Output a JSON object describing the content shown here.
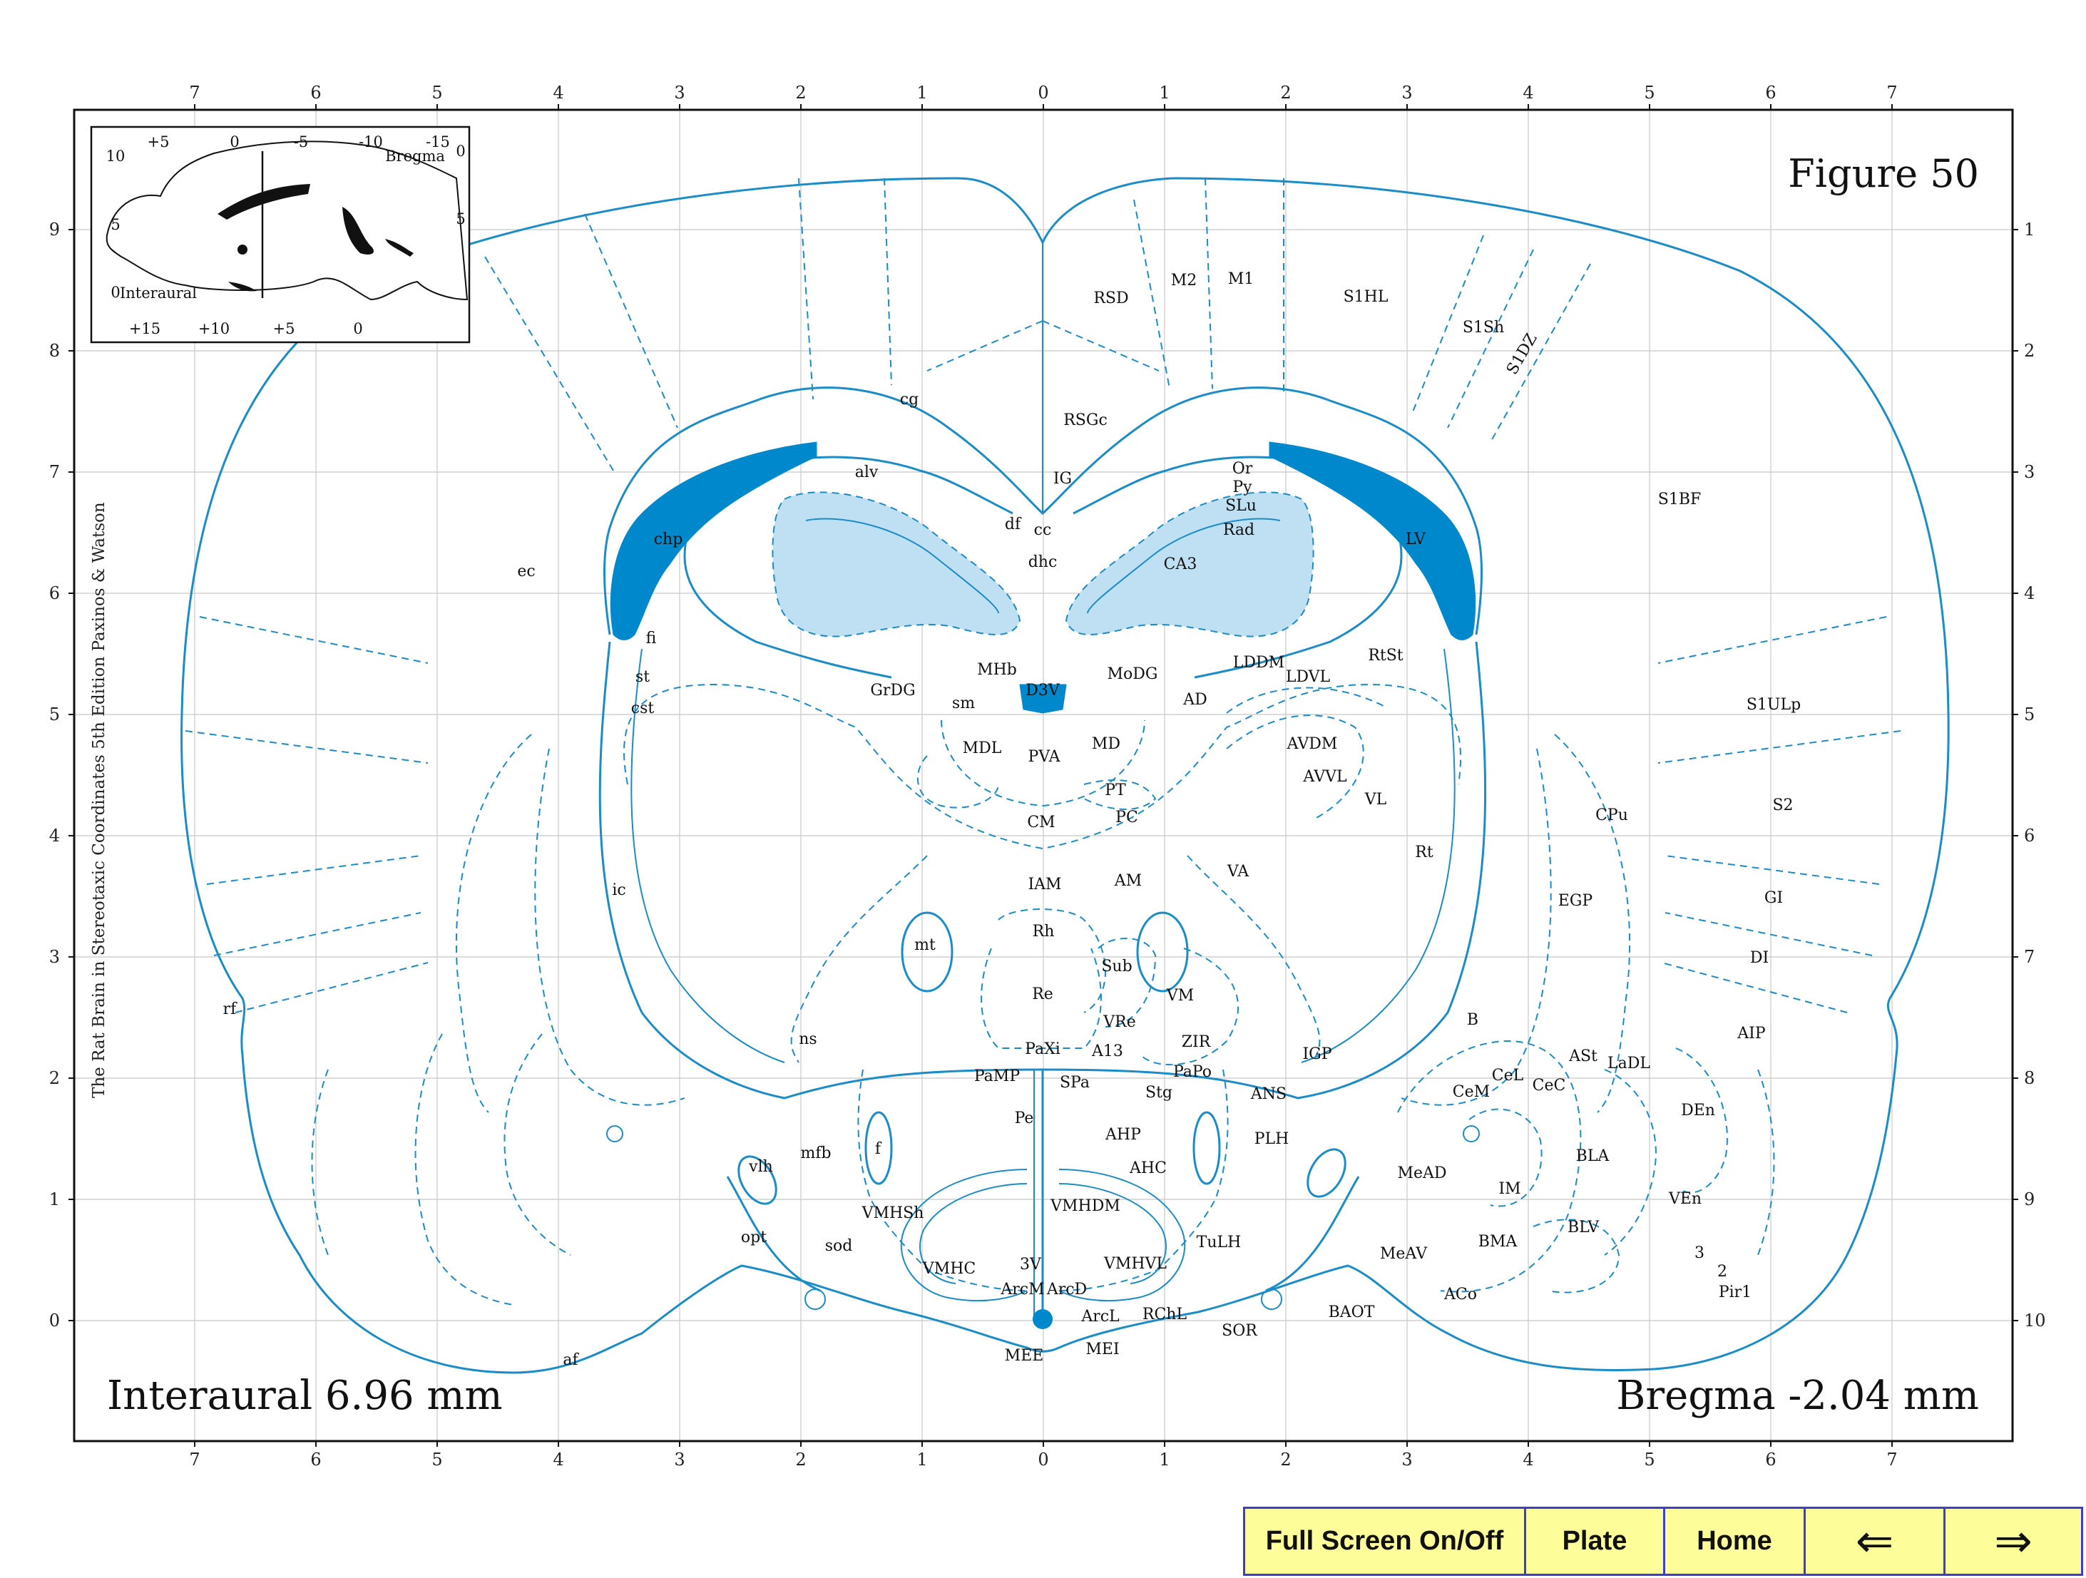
{
  "figure": {
    "title": "Figure 50",
    "interaural": "Interaural 6.96 mm",
    "bregma": "Bregma -2.04 mm",
    "side_caption": "The Rat Brain in Stereotaxic Coordinates  5th Edition  Paxinos & Watson"
  },
  "axes": {
    "top_ticks": [
      "7",
      "6",
      "5",
      "4",
      "3",
      "2",
      "1",
      "0",
      "1",
      "2",
      "3",
      "4",
      "5",
      "6",
      "7"
    ],
    "bottom_ticks": [
      "7",
      "6",
      "5",
      "4",
      "3",
      "2",
      "1",
      "0",
      "1",
      "2",
      "3",
      "4",
      "5",
      "6",
      "7"
    ],
    "left_ticks": [
      "9",
      "8",
      "7",
      "6",
      "5",
      "4",
      "3",
      "2",
      "1",
      "0"
    ],
    "right_ticks": [
      "1",
      "2",
      "3",
      "4",
      "5",
      "6",
      "7",
      "8",
      "9",
      "10"
    ]
  },
  "inset": {
    "top_ticks": [
      "+5",
      "0",
      "-5",
      "-10",
      "-15"
    ],
    "bottom_ticks": [
      "+15",
      "+10",
      "+5",
      "0"
    ],
    "left_ticks": [
      "10",
      "5",
      "0"
    ],
    "right_ticks": [
      "0",
      "5"
    ],
    "bregma_label": "Bregma",
    "interaural_label": "Interaural"
  },
  "regions": [
    "RSD",
    "M2",
    "M1",
    "S1HL",
    "S1Sh",
    "S1DZ",
    "cg",
    "RSGc",
    "IG",
    "alv",
    "Or",
    "Py",
    "SLu",
    "Rad",
    "df",
    "cc",
    "dhc",
    "CA3",
    "chp",
    "LV",
    "S1BF",
    "ec",
    "fi",
    "st",
    "cst",
    "GrDG",
    "MHb",
    "D3V",
    "MoDG",
    "LDDM",
    "LDVL",
    "RtSt",
    "AD",
    "sm",
    "MDL",
    "PVA",
    "MD",
    "AVDM",
    "AVVL",
    "S1ULp",
    "PT",
    "PC",
    "CM",
    "VL",
    "CPu",
    "S2",
    "Rt",
    "IAM",
    "AM",
    "VA",
    "ic",
    "EGP",
    "GI",
    "mt",
    "Rh",
    "Sub",
    "DI",
    "Re",
    "VM",
    "rf",
    "VRe",
    "ZIR",
    "B",
    "AIP",
    "ns",
    "PaXi",
    "A13",
    "IGP",
    "ASt",
    "LaDL",
    "PaMP",
    "SPa",
    "PaPo",
    "CeL",
    "CeC",
    "Stg",
    "ANS",
    "CeM",
    "DEn",
    "Pe",
    "AHP",
    "PLH",
    "f",
    "mfb",
    "AHC",
    "MeAD",
    "BLA",
    "vlh",
    "IM",
    "VEn",
    "VMHSh",
    "VMHDM",
    "BLV",
    "opt",
    "sod",
    "TuLH",
    "BMA",
    "MeAV",
    "VMHC",
    "3V",
    "VMHVL",
    "ArcM",
    "ArcD",
    "ACo",
    "Pir1",
    "ArcL",
    "RChL",
    "SOR",
    "BAOT",
    "MEE",
    "MEI",
    "af"
  ],
  "layer_labels": [
    "3",
    "2"
  ],
  "navigation": {
    "fullscreen": "Full Screen On/Off",
    "plate": "Plate",
    "home": "Home",
    "back": "⇐",
    "forward": "⇒"
  },
  "colors": {
    "line": "#1a8cc7",
    "fill_dark": "#0088cc",
    "fill_light": "#bfe0f3",
    "nav_background": "#fdfd9a",
    "nav_border": "#3d3dd6"
  }
}
